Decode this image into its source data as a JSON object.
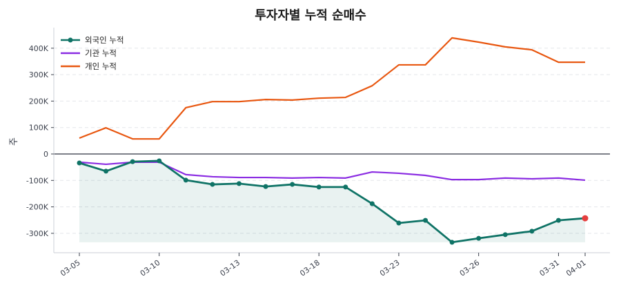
{
  "chart_data": {
    "type": "line",
    "title": "투자자별 누적 순매수",
    "xlabel": "",
    "ylabel": "주",
    "ylim": [
      -370000,
      480000
    ],
    "yticks": [
      -300000,
      -200000,
      -100000,
      0,
      100000,
      200000,
      300000,
      400000
    ],
    "ytick_labels": [
      "-300K",
      "-200K",
      "-100K",
      "0",
      "100K",
      "200K",
      "300K",
      "400K"
    ],
    "x": [
      "03-05",
      "03-06",
      "03-07",
      "03-10",
      "03-11",
      "03-12",
      "03-13",
      "03-14",
      "03-17",
      "03-18",
      "03-19",
      "03-20",
      "03-23",
      "03-24",
      "03-25",
      "03-26",
      "03-27",
      "03-30",
      "03-31",
      "04-01"
    ],
    "xtick_labels": [
      "03-05",
      "03-10",
      "03-13",
      "03-18",
      "03-23",
      "03-26",
      "03-31",
      "04-01"
    ],
    "grid": "horizontal dashed",
    "legend_position": "upper left",
    "series": [
      {
        "name": "외국인 누적",
        "color": "#0f7366",
        "marker": "circle",
        "fill_below": true,
        "values": [
          -34000,
          -65000,
          -29000,
          -26000,
          -99000,
          -115000,
          -112000,
          -123000,
          -115000,
          -125000,
          -125000,
          -188000,
          -261000,
          -251000,
          -334000,
          -319000,
          -305000,
          -292000,
          -251000,
          -243000
        ],
        "last_point_color": "#e53e3e"
      },
      {
        "name": "기관 누적",
        "color": "#8a2be2",
        "marker": "none",
        "values": [
          -31000,
          -39000,
          -31000,
          -31000,
          -78000,
          -86000,
          -89000,
          -89000,
          -91000,
          -89000,
          -91000,
          -68000,
          -73000,
          -81000,
          -97000,
          -97000,
          -91000,
          -94000,
          -91000,
          -99000
        ]
      },
      {
        "name": "개인 누적",
        "color": "#e8560f",
        "marker": "none",
        "values": [
          60000,
          99000,
          57000,
          57000,
          175000,
          198000,
          198000,
          206000,
          204000,
          211000,
          214000,
          258000,
          337000,
          337000,
          439000,
          423000,
          405000,
          394000,
          347000,
          347000
        ]
      }
    ]
  }
}
